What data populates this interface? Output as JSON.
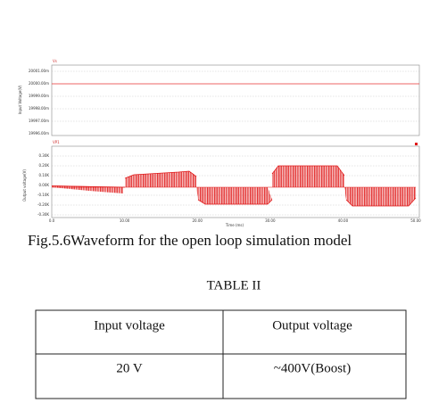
{
  "figure": {
    "top_panel": {
      "label": "Vs",
      "y_axis_label": "Input Voltage(V)",
      "y_tick_labels": [
        "20001.00m",
        "20000.00m",
        "19999.00m",
        "19998.00m",
        "19997.00m",
        "19996.00m"
      ]
    },
    "bottom_panel": {
      "label": "VP1",
      "y_axis_label": "Output voltage(V)",
      "y_tick_labels": [
        "0.30K",
        "0.20K",
        "0.10K",
        "0.00K",
        "-0.10K",
        "-0.20K",
        "-0.30K"
      ],
      "x_tick_labels": [
        "0.0",
        "10.00",
        "20.00",
        "30.00",
        "40.00",
        "50.00"
      ],
      "x_axis_label": "Time (ms)"
    },
    "caption": "Fig.5.6Waveform for the open loop simulation model"
  },
  "table": {
    "title": "TABLE II",
    "header": [
      "Input voltage",
      "Output voltage"
    ],
    "rows": [
      [
        "20 V",
        "~400V(Boost)"
      ]
    ]
  }
}
